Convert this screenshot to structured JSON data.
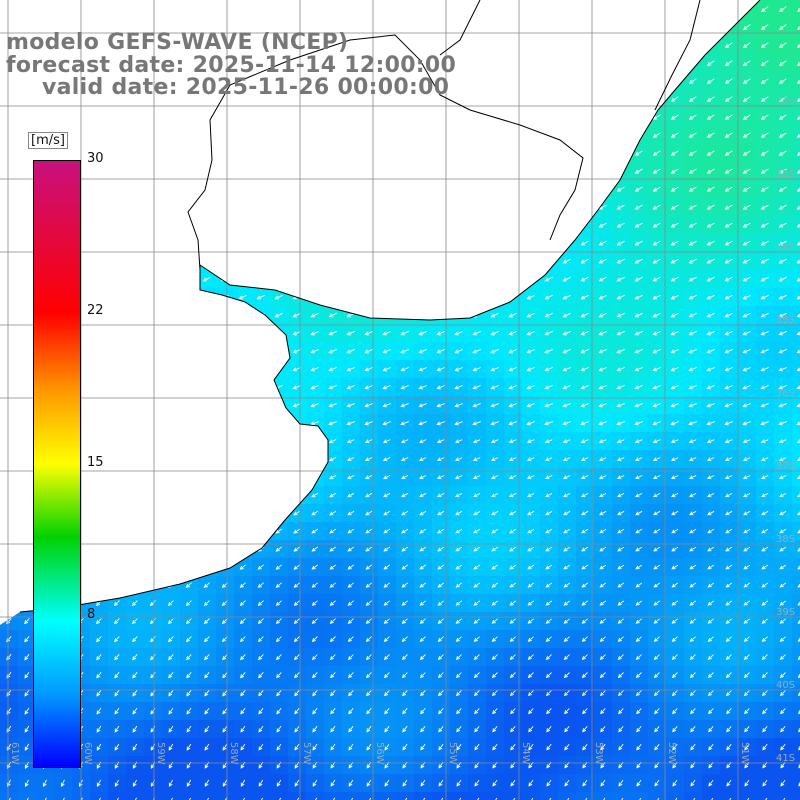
{
  "titles": {
    "line1": "modelo GEFS-WAVE (NCEP)",
    "line2": "forecast date: 2025-11-14 12:00:00",
    "line3": "valid date: 2025-11-26 00:00:00"
  },
  "colorbar": {
    "unit": "[m/s]",
    "labels": [
      "30",
      "22",
      "15",
      "8"
    ],
    "colors": [
      "#c8107e",
      "#ff0000",
      "#ff9900",
      "#ffff00",
      "#00d200",
      "#00ffff",
      "#0099ff",
      "#0000ff"
    ]
  },
  "map": {
    "lat_labels": [
      "32S",
      "33S",
      "34S",
      "35S",
      "36S",
      "37S",
      "38S",
      "39S",
      "40S",
      "41S"
    ],
    "lon_labels": [
      "61W",
      "60W",
      "59W",
      "58W",
      "57W",
      "56W",
      "55W",
      "54W",
      "53W",
      "52W",
      "51W"
    ],
    "ocean_color_north": "#20e890",
    "ocean_color_south": "#0a55f0",
    "land_color": "#ffffff",
    "arrow_color": "#ffffff"
  }
}
